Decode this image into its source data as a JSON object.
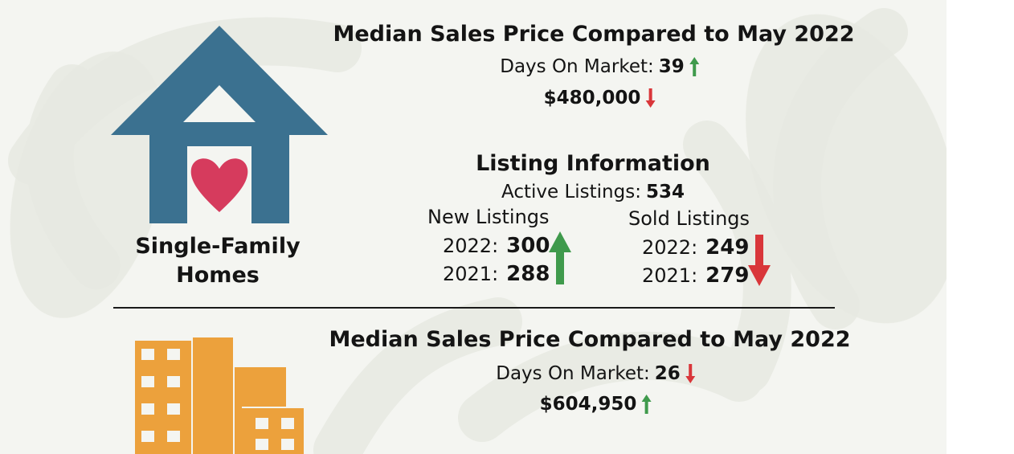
{
  "colors": {
    "background": "#f4f5f1",
    "house_blue": "#3b7190",
    "heart_red": "#d63b5d",
    "building_orange": "#eca13c",
    "arrow_up_green": "#3f9a4c",
    "arrow_down_red": "#d9363a",
    "text": "#141414"
  },
  "single_family": {
    "icon": "house-heart-icon",
    "label_line1": "Single-Family",
    "label_line2": "Homes",
    "heading": "Median Sales Price Compared to May 2022",
    "dom_label": "Days On Market:",
    "dom_value": "39",
    "dom_trend": "up-arrow-icon",
    "price": "$480,000",
    "price_trend": "down-arrow-icon",
    "listing_heading": "Listing Information",
    "active_label": "Active Listings:",
    "active_value": "534",
    "new_listings": {
      "title": "New Listings",
      "rows": [
        {
          "year": "2022:",
          "value": "300"
        },
        {
          "year": "2021:",
          "value": "288"
        }
      ],
      "trend": "large-up-arrow-icon"
    },
    "sold_listings": {
      "title": "Sold Listings",
      "rows": [
        {
          "year": "2022:",
          "value": "249"
        },
        {
          "year": "2021:",
          "value": "279"
        }
      ],
      "trend": "large-down-arrow-icon"
    }
  },
  "condo": {
    "icon": "buildings-icon",
    "heading": "Median Sales Price Compared to May 2022",
    "dom_label": "Days On Market:",
    "dom_value": "26",
    "dom_trend": "down-arrow-icon",
    "price": "$604,950",
    "price_trend": "up-arrow-icon"
  }
}
